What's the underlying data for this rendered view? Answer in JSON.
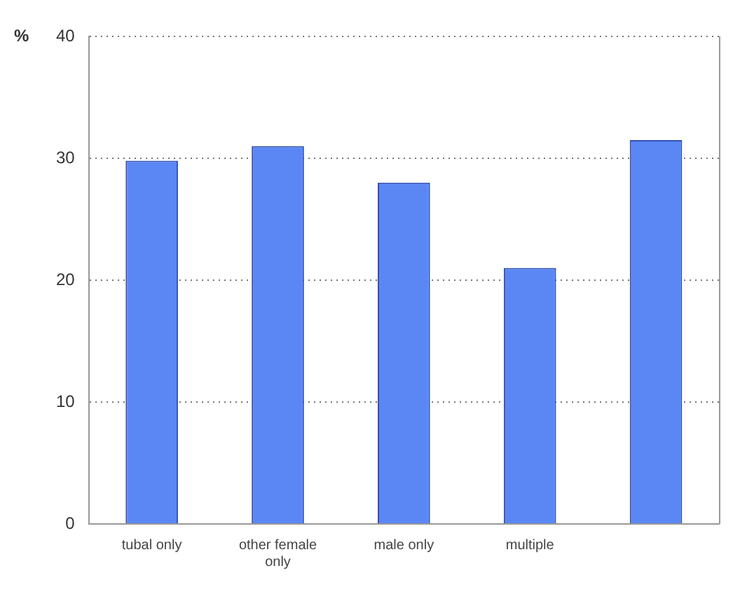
{
  "chart_data": {
    "type": "bar",
    "ylabel": "%",
    "categories": [
      "tubal only",
      "other female only",
      "male only",
      "multiple",
      null
    ],
    "values": [
      29.8,
      31,
      28,
      21,
      31.5
    ],
    "color": "#5b87f5",
    "ylim": [
      0,
      40
    ],
    "yticks": [
      0,
      10,
      20,
      30,
      40
    ],
    "grid": "y"
  }
}
